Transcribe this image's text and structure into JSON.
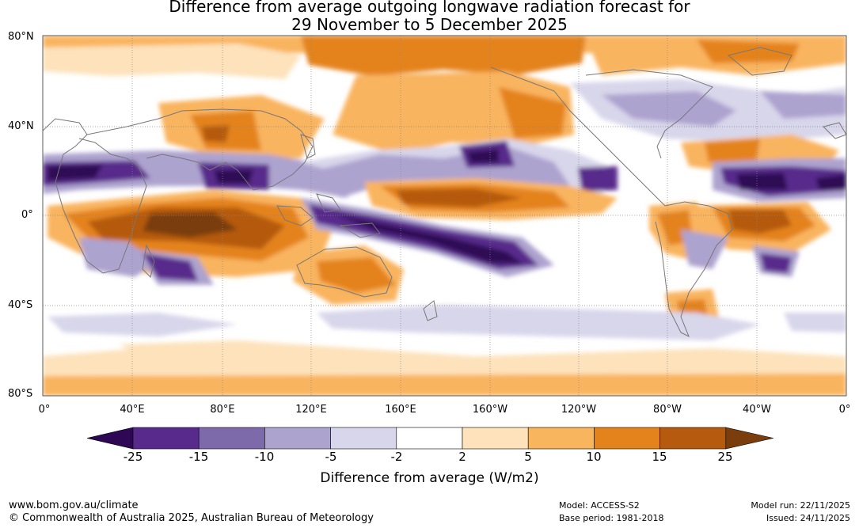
{
  "title": {
    "line1": "Difference from average outgoing longwave radiation forecast for",
    "line2": "29 November to 5 December 2025"
  },
  "axes": {
    "lat_labels": [
      "80°N",
      "40°N",
      "0°",
      "40°S",
      "80°S"
    ],
    "lon_labels": [
      "0°",
      "40°E",
      "80°E",
      "120°E",
      "160°E",
      "160°W",
      "120°W",
      "80°W",
      "40°W",
      "0°"
    ]
  },
  "colorbar": {
    "label": "Difference from average (W/m2)",
    "ticks": [
      "-25",
      "-15",
      "-10",
      "-5",
      "-2",
      "2",
      "5",
      "10",
      "15",
      "25"
    ],
    "colors": [
      "#2e0854",
      "#582a8c",
      "#7d6aaa",
      "#ada3cf",
      "#d8d6ea",
      "#ffffff",
      "#fde2bb",
      "#f9b45e",
      "#e4831b",
      "#b55a0f",
      "#7a3d0b"
    ]
  },
  "footer": {
    "website": "www.bom.gov.au/climate",
    "copyright": "© Commonwealth of Australia 2025, Australian Bureau of Meteorology",
    "model": "Model: ACCESS-S2",
    "base_period": "Base period: 1981-2018",
    "model_run": "Model run: 22/11/2025",
    "issued": "Issued: 24/11/2025"
  }
}
